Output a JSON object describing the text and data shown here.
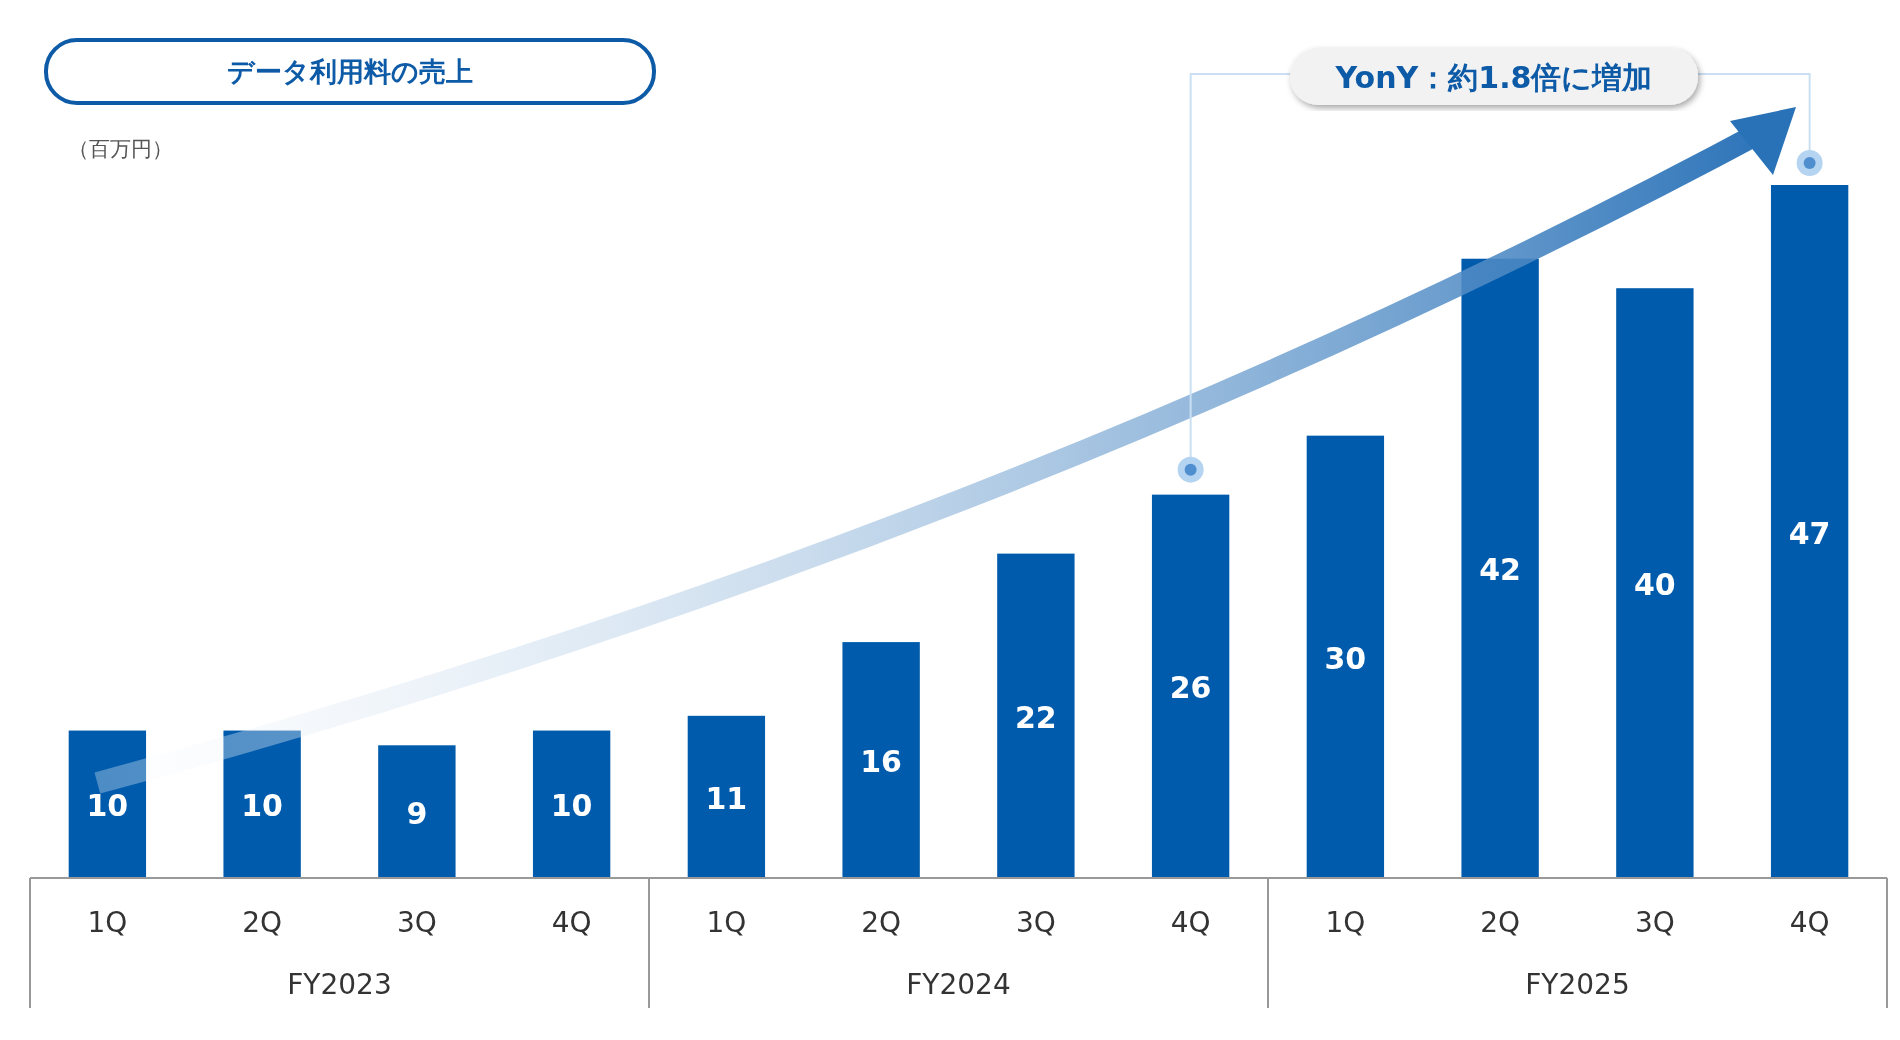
{
  "chart_data": {
    "type": "bar",
    "title": "データ利用料の売上",
    "ylabel": "（百万円）",
    "categories": [
      "1Q",
      "2Q",
      "3Q",
      "4Q",
      "1Q",
      "2Q",
      "3Q",
      "4Q",
      "1Q",
      "2Q",
      "3Q",
      "4Q"
    ],
    "values": [
      10,
      10,
      9,
      10,
      11,
      16,
      22,
      26,
      30,
      42,
      40,
      47
    ],
    "color": "#005bac",
    "data_labels": true,
    "annotations": [
      "FY2023",
      "FY2024",
      "FY2025",
      "YonY：約1.8倍に増加"
    ]
  }
}
